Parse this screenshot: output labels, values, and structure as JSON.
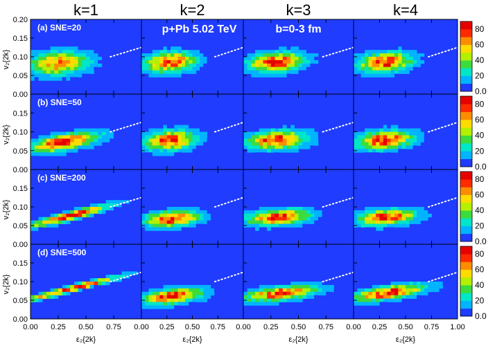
{
  "colors": {
    "background": "#1f3cff",
    "axis": "#000000",
    "dotted_line": "#ffffff",
    "panel_label": "#ffffff",
    "colormap": [
      "#1f3cff",
      "#00b4ff",
      "#00e6c8",
      "#3cdc3c",
      "#b4f000",
      "#ffdc00",
      "#ff8c00",
      "#ff2a00",
      "#e60000"
    ]
  },
  "chart_data": {
    "type": "heatmap",
    "columns": [
      {
        "label": "k=1"
      },
      {
        "label": "k=2"
      },
      {
        "label": "k=3"
      },
      {
        "label": "k=4"
      }
    ],
    "rows": [
      {
        "label": "(a) SNE=20"
      },
      {
        "label": "(b) SNE=50"
      },
      {
        "label": "(c) SNE=200"
      },
      {
        "label": "(d) SNE=500"
      }
    ],
    "annotations": {
      "system": "p+Pb 5.02 TeV",
      "centrality": "b=0-3 fm"
    },
    "xlabel": "ε₂{2k}",
    "ylabel": "v₂{2k}",
    "xlim": [
      0,
      1
    ],
    "ylim": [
      0,
      0.2
    ],
    "x_ticks": [
      "0.00",
      "0.25",
      "0.50",
      "0.75",
      "0.00",
      "0.25",
      "0.50",
      "0.75",
      "0.00",
      "0.25",
      "0.50",
      "0.75",
      "0.00",
      "0.25",
      "0.50",
      "0.75",
      "1.00"
    ],
    "y_ticks": [
      "0.00",
      "0.05",
      "0.10",
      "0.15",
      "0.20"
    ],
    "colorbar_ticks": [
      "0.0",
      "20",
      "40",
      "60",
      "80"
    ],
    "colorbar_range": [
      0,
      90
    ],
    "reference_line": {
      "x": [
        0,
        1
      ],
      "y": [
        0.035,
        0.125
      ]
    },
    "density_peak_counts": [
      [
        70,
        80,
        85,
        85
      ],
      [
        85,
        85,
        85,
        85
      ],
      [
        90,
        85,
        85,
        85
      ],
      [
        95,
        90,
        85,
        85
      ]
    ]
  }
}
